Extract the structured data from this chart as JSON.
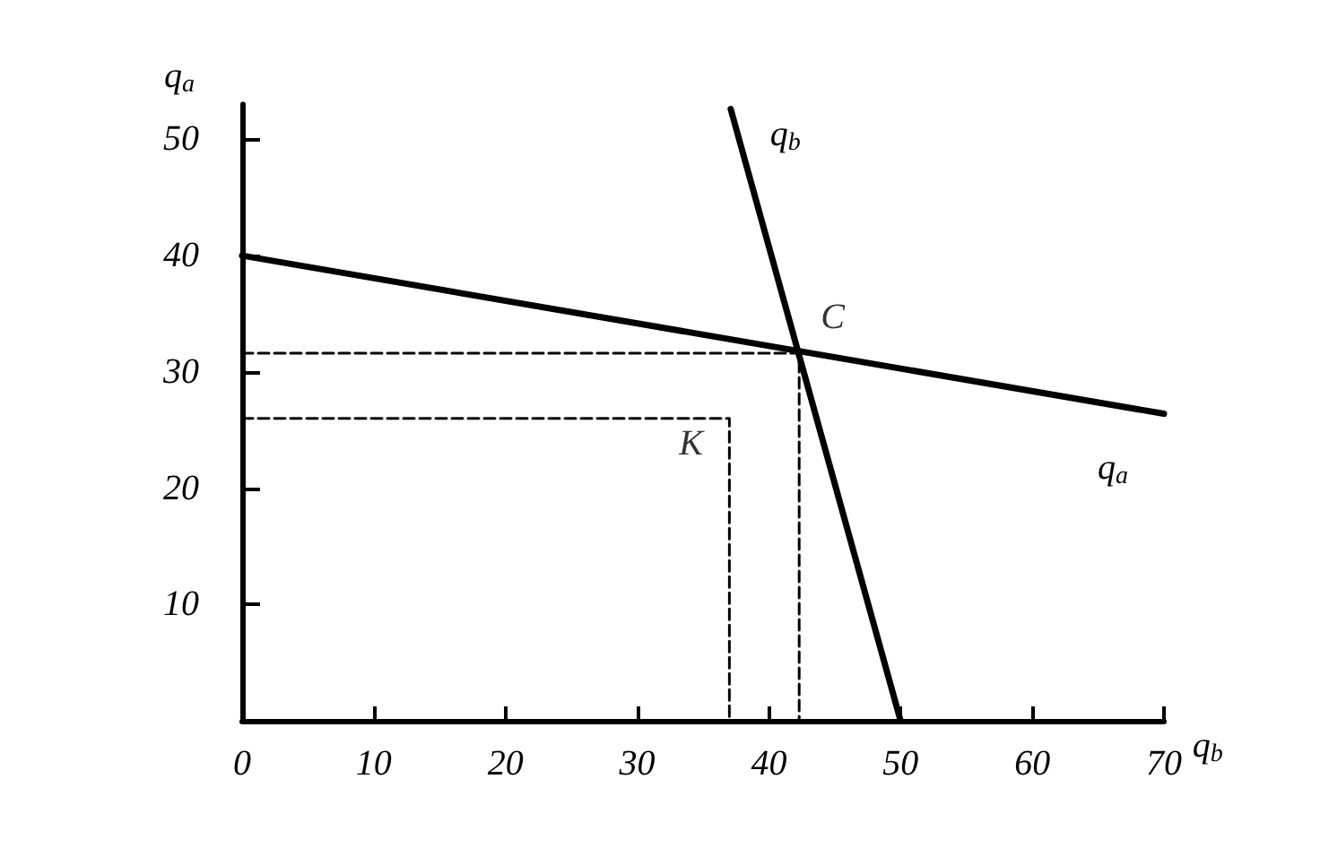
{
  "chart_data": {
    "type": "line",
    "xlabel": "q$_{b}$",
    "ylabel": "q$_{a}$",
    "xlim": [
      0,
      70
    ],
    "ylim": [
      0,
      53
    ],
    "xticks": [
      0,
      10,
      20,
      30,
      40,
      50,
      60,
      70
    ],
    "yticks": [
      10,
      20,
      30,
      40,
      50
    ],
    "grid": false,
    "legend": false,
    "marker": "none",
    "line_style": "solid",
    "series": [
      {
        "name": "q$_{a}$",
        "color": "#000000",
        "x": [
          0,
          70
        ],
        "values": [
          40,
          26.4
        ]
      },
      {
        "name": "q$_{b}$",
        "color": "#000000",
        "x": [
          50,
          37.1
        ],
        "values": [
          0,
          52.6
        ]
      },
      {
        "color": "#000000",
        "line_style": "dashed",
        "x": [
          0,
          42.3,
          42.3
        ],
        "values": [
          31.6,
          31.6,
          0
        ]
      },
      {
        "color": "#000000",
        "line_style": "dashed",
        "x": [
          0,
          37,
          37
        ],
        "values": [
          26,
          26,
          0
        ]
      }
    ],
    "annotations": [
      {
        "text": "C",
        "x": 42.3,
        "y": 31.6
      },
      {
        "text": "K",
        "x": 37,
        "y": 26
      }
    ]
  }
}
